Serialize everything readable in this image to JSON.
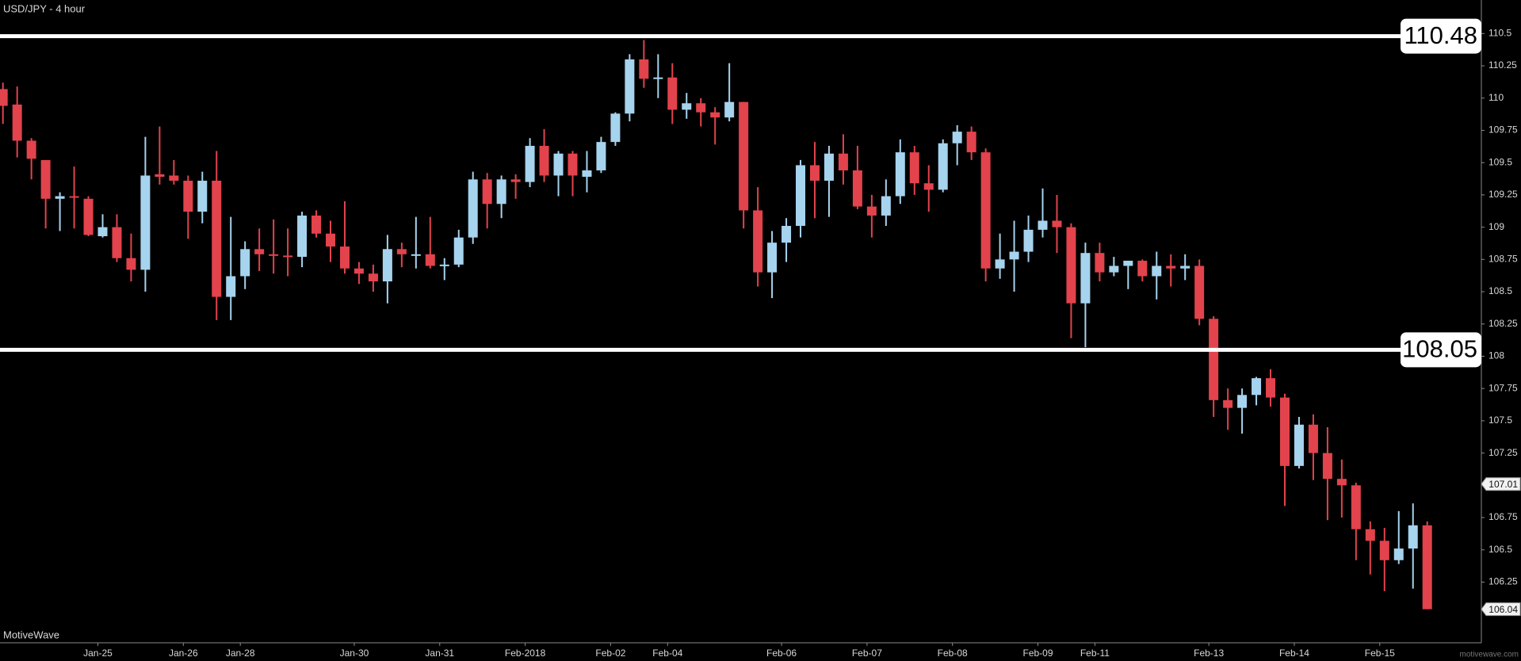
{
  "chart_data": {
    "type": "candlestick",
    "title": "USD/JPY - 4 hour",
    "brand": "MotiveWave",
    "credit": "motivewave.com",
    "categories": [
      null,
      null,
      null,
      null,
      null,
      null,
      null,
      "Jan-25",
      null,
      null,
      null,
      null,
      null,
      "Jan-26",
      null,
      null,
      null,
      "Jan-28",
      null,
      null,
      null,
      null,
      null,
      null,
      null,
      "Jan-30",
      null,
      null,
      null,
      null,
      null,
      "Jan-31",
      null,
      null,
      null,
      null,
      null,
      "Feb-2018",
      null,
      null,
      null,
      null,
      null,
      "Feb-02",
      null,
      null,
      null,
      "Feb-04",
      null,
      null,
      null,
      null,
      null,
      null,
      null,
      "Feb-06",
      null,
      null,
      null,
      null,
      null,
      "Feb-07",
      null,
      null,
      null,
      null,
      null,
      "Feb-08",
      null,
      null,
      null,
      null,
      null,
      "Feb-09",
      null,
      null,
      null,
      "Feb-11",
      null,
      null,
      null,
      null,
      null,
      null,
      null,
      "Feb-13",
      null,
      null,
      null,
      null,
      null,
      "Feb-14",
      null,
      null,
      null,
      null,
      null,
      "Feb-15",
      null,
      null,
      null
    ],
    "open": [
      110.07,
      109.95,
      109.67,
      109.52,
      109.22,
      109.24,
      109.22,
      108.93,
      109.0,
      108.76,
      108.67,
      109.41,
      109.4,
      109.36,
      109.12,
      109.36,
      108.46,
      108.62,
      108.83,
      108.79,
      108.78,
      108.77,
      109.09,
      108.95,
      108.85,
      108.68,
      108.64,
      108.58,
      108.83,
      108.78,
      108.79,
      108.7,
      108.71,
      108.92,
      109.37,
      109.18,
      109.37,
      109.35,
      109.63,
      109.4,
      109.57,
      109.39,
      109.44,
      109.66,
      109.88,
      110.3,
      110.15,
      110.16,
      109.91,
      109.96,
      109.89,
      109.85,
      109.97,
      109.13,
      108.65,
      108.88,
      109.01,
      109.48,
      109.36,
      109.57,
      109.44,
      109.16,
      109.09,
      109.24,
      109.58,
      109.34,
      109.29,
      109.65,
      109.74,
      109.58,
      108.68,
      108.75,
      108.81,
      108.98,
      109.05,
      109.0,
      108.41,
      108.8,
      108.65,
      108.7,
      108.74,
      108.62,
      108.7,
      108.68,
      108.7,
      108.29,
      107.66,
      107.6,
      107.7,
      107.83,
      107.68,
      107.15,
      107.47,
      107.25,
      107.05,
      107.0,
      106.66,
      106.57,
      106.42,
      106.51,
      106.69
    ],
    "high": [
      110.12,
      110.09,
      109.69,
      109.52,
      109.27,
      109.47,
      109.24,
      109.1,
      109.1,
      108.95,
      109.7,
      109.78,
      109.52,
      109.4,
      109.43,
      109.59,
      109.08,
      108.89,
      108.99,
      109.06,
      108.99,
      109.12,
      109.13,
      109.05,
      109.2,
      108.73,
      108.71,
      108.94,
      108.88,
      109.08,
      109.08,
      108.76,
      108.98,
      109.43,
      109.42,
      109.4,
      109.41,
      109.69,
      109.76,
      109.59,
      109.59,
      109.59,
      109.7,
      109.89,
      110.34,
      110.45,
      110.34,
      110.27,
      110.04,
      110.0,
      109.93,
      110.27,
      109.97,
      109.31,
      108.97,
      109.07,
      109.52,
      109.66,
      109.63,
      109.72,
      109.63,
      109.25,
      109.37,
      109.68,
      109.63,
      109.48,
      109.68,
      109.79,
      109.78,
      109.61,
      108.95,
      109.05,
      109.09,
      109.3,
      109.25,
      109.03,
      108.88,
      108.88,
      108.77,
      108.74,
      108.75,
      108.81,
      108.79,
      108.79,
      108.75,
      108.31,
      107.75,
      107.75,
      107.84,
      107.9,
      107.71,
      107.53,
      107.55,
      107.45,
      107.2,
      107.02,
      106.72,
      106.67,
      106.8,
      106.86,
      106.72
    ],
    "low": [
      109.8,
      109.54,
      109.37,
      108.99,
      108.97,
      108.99,
      108.93,
      108.92,
      108.73,
      108.58,
      108.5,
      109.33,
      109.33,
      108.91,
      109.03,
      108.28,
      108.28,
      108.52,
      108.66,
      108.64,
      108.62,
      108.69,
      108.92,
      108.73,
      108.64,
      108.56,
      108.5,
      108.41,
      108.69,
      108.68,
      108.68,
      108.59,
      108.69,
      108.87,
      108.99,
      109.07,
      109.22,
      109.31,
      109.35,
      109.24,
      109.24,
      109.27,
      109.42,
      109.63,
      109.82,
      110.08,
      110.0,
      109.8,
      109.84,
      109.78,
      109.64,
      109.82,
      108.99,
      108.54,
      108.45,
      108.73,
      108.92,
      109.07,
      109.08,
      109.33,
      109.14,
      108.92,
      109.01,
      109.18,
      109.25,
      109.12,
      109.27,
      109.48,
      109.52,
      108.58,
      108.6,
      108.5,
      108.73,
      108.92,
      108.8,
      108.14,
      108.07,
      108.58,
      108.62,
      108.52,
      108.58,
      108.44,
      108.54,
      108.59,
      108.24,
      107.53,
      107.43,
      107.4,
      107.62,
      107.61,
      106.84,
      107.13,
      107.04,
      106.73,
      106.75,
      106.42,
      106.31,
      106.18,
      106.39,
      106.2,
      106.04
    ],
    "close": [
      109.94,
      109.67,
      109.53,
      109.22,
      109.24,
      109.23,
      108.94,
      109.0,
      108.76,
      108.67,
      109.4,
      109.39,
      109.36,
      109.12,
      109.36,
      108.46,
      108.62,
      108.83,
      108.79,
      108.78,
      108.77,
      109.09,
      108.95,
      108.85,
      108.68,
      108.64,
      108.58,
      108.83,
      108.79,
      108.79,
      108.7,
      108.71,
      108.92,
      109.37,
      109.18,
      109.37,
      109.35,
      109.63,
      109.4,
      109.57,
      109.4,
      109.44,
      109.66,
      109.88,
      110.3,
      110.15,
      110.16,
      109.91,
      109.96,
      109.89,
      109.85,
      109.97,
      109.13,
      108.65,
      108.88,
      109.01,
      109.48,
      109.36,
      109.57,
      109.44,
      109.16,
      109.09,
      109.24,
      109.58,
      109.34,
      109.29,
      109.65,
      109.74,
      109.58,
      108.68,
      108.75,
      108.81,
      108.98,
      109.05,
      109.0,
      108.41,
      108.8,
      108.65,
      108.7,
      108.74,
      108.62,
      108.7,
      108.68,
      108.7,
      108.29,
      107.66,
      107.6,
      107.7,
      107.83,
      107.68,
      107.15,
      107.47,
      107.25,
      107.05,
      107.0,
      106.66,
      106.57,
      106.42,
      106.51,
      106.69,
      106.04
    ],
    "up_color": "#a6d3ee",
    "down_color": "#e2434c",
    "hlines": [
      110.48,
      108.05
    ],
    "hline_color": "#ffffff",
    "price_markers": [
      107.01,
      106.04
    ],
    "ylim": [
      105.78,
      110.76
    ],
    "yticks": [
      106.25,
      106.5,
      106.75,
      107,
      107.25,
      107.5,
      107.75,
      108,
      108.25,
      108.5,
      108.75,
      109,
      109.25,
      109.5,
      109.75,
      110,
      110.25,
      110.5
    ]
  }
}
